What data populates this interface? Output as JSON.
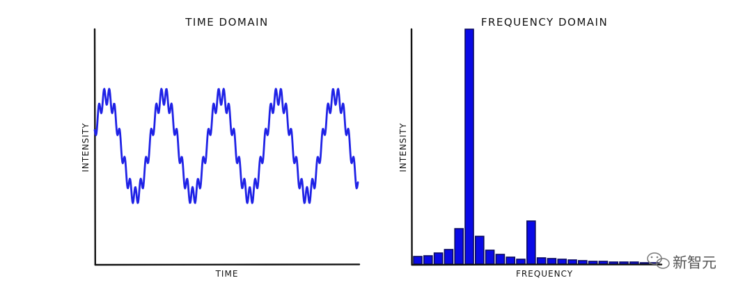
{
  "chart_data": [
    {
      "type": "line",
      "title": "TIME DOMAIN",
      "xlabel": "TIME",
      "ylabel": "INTENSITY",
      "grid": false,
      "series_color": "#1f22e6",
      "signal": {
        "cycles": 4.6,
        "harmonic_ratio": 11,
        "harmonic_amplitude_ratio": 0.18
      }
    },
    {
      "type": "bar",
      "title": "FREQUENCY DOMAIN",
      "xlabel": "FREQUENCY",
      "ylabel": "INTENSITY",
      "grid": false,
      "bar_color": "#0a0ae6",
      "values": [
        11,
        12,
        16,
        21,
        51,
        338,
        40,
        20,
        14,
        10,
        7,
        62,
        9,
        8,
        7,
        6,
        5,
        4,
        4,
        3,
        3,
        3,
        2,
        2
      ],
      "ylim": [
        0,
        338
      ]
    }
  ],
  "watermark": {
    "text": "新智元",
    "icon": "wechat-icon"
  }
}
